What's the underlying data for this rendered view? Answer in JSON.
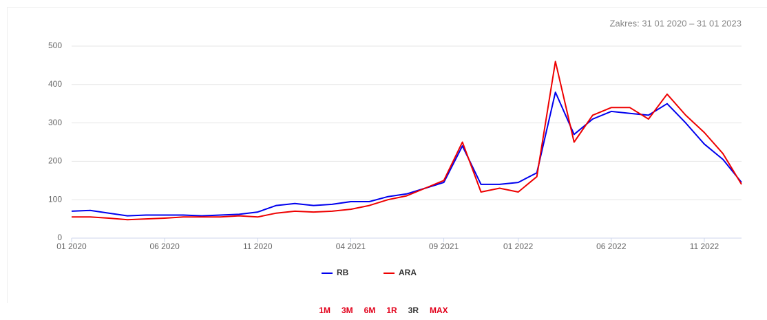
{
  "chart_data": {
    "type": "line",
    "range_label": "Zakres: 31 01 2020 – 31 01 2023",
    "x": [
      "2020-01",
      "2020-02",
      "2020-03",
      "2020-04",
      "2020-05",
      "2020-06",
      "2020-07",
      "2020-08",
      "2020-09",
      "2020-10",
      "2020-11",
      "2020-12",
      "2021-01",
      "2021-02",
      "2021-03",
      "2021-04",
      "2021-05",
      "2021-06",
      "2021-07",
      "2021-08",
      "2021-09",
      "2021-10",
      "2021-11",
      "2021-12",
      "2022-01",
      "2022-02",
      "2022-03",
      "2022-04",
      "2022-05",
      "2022-06",
      "2022-07",
      "2022-08",
      "2022-09",
      "2022-10",
      "2022-11",
      "2022-12",
      "2023-01"
    ],
    "series": [
      {
        "name": "RB",
        "color": "#0000ee",
        "values": [
          70,
          72,
          65,
          58,
          60,
          60,
          60,
          58,
          60,
          62,
          68,
          85,
          90,
          85,
          88,
          95,
          95,
          108,
          115,
          130,
          145,
          240,
          140,
          140,
          145,
          170,
          380,
          270,
          310,
          330,
          325,
          320,
          350,
          300,
          245,
          205,
          145
        ]
      },
      {
        "name": "ARA",
        "color": "#ee0000",
        "values": [
          55,
          55,
          52,
          48,
          50,
          52,
          55,
          55,
          55,
          58,
          55,
          65,
          70,
          68,
          70,
          75,
          85,
          100,
          110,
          130,
          150,
          250,
          120,
          130,
          120,
          160,
          460,
          250,
          320,
          340,
          340,
          310,
          375,
          320,
          275,
          220,
          140
        ]
      }
    ],
    "xlim": [
      "2020-01",
      "2023-01"
    ],
    "xticks": [
      {
        "value": "2020-01",
        "label": "01 2020"
      },
      {
        "value": "2020-06",
        "label": "06 2020"
      },
      {
        "value": "2020-11",
        "label": "11 2020"
      },
      {
        "value": "2021-04",
        "label": "04 2021"
      },
      {
        "value": "2021-09",
        "label": "09 2021"
      },
      {
        "value": "2022-01",
        "label": "01 2022"
      },
      {
        "value": "2022-06",
        "label": "06 2022"
      },
      {
        "value": "2022-11",
        "label": "11 2022"
      }
    ],
    "ylim": [
      0,
      500
    ],
    "yticks": [
      0,
      100,
      200,
      300,
      400,
      500
    ],
    "grid": true,
    "legend": "bottom"
  },
  "buttons": [
    "1M",
    "3M",
    "6M",
    "1R",
    "3R",
    "MAX"
  ],
  "active": "3R"
}
